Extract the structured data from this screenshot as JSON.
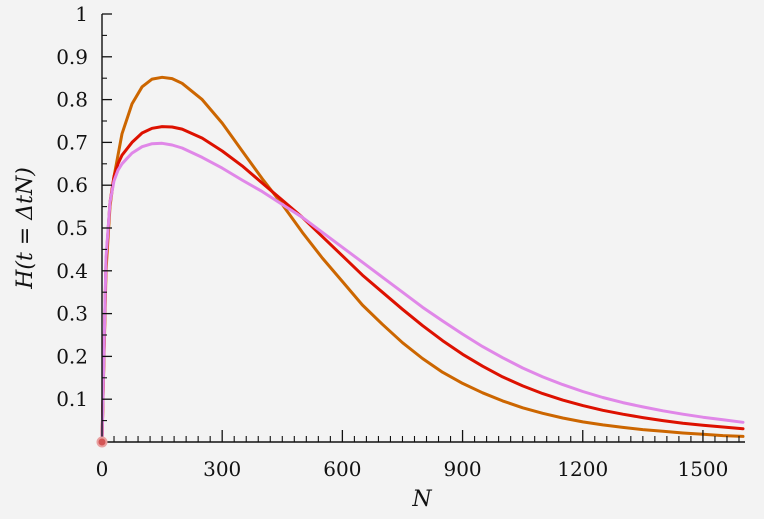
{
  "chart_data": {
    "type": "line",
    "title": "",
    "xlabel": "N",
    "ylabel": "H(t = ΔtN)",
    "xlim": [
      0,
      1600
    ],
    "ylim": [
      0,
      1
    ],
    "x_ticks": [
      "0",
      "300",
      "600",
      "900",
      "1200",
      "1500"
    ],
    "y_ticks": [
      "0.1",
      "0.2",
      "0.3",
      "0.4",
      "0.5",
      "0.6",
      "0.7",
      "0.8",
      "0.9",
      "1"
    ],
    "grid": false,
    "legend": "none",
    "series": [
      {
        "color": "#cc6600",
        "x": [
          0,
          10,
          20,
          30,
          40,
          50,
          75,
          100,
          125,
          150,
          175,
          200,
          250,
          300,
          350,
          400,
          450,
          500,
          550,
          600,
          650,
          700,
          750,
          800,
          850,
          900,
          950,
          1000,
          1050,
          1100,
          1150,
          1200,
          1250,
          1300,
          1350,
          1400,
          1450,
          1500,
          1550,
          1600
        ],
        "y": [
          0.0,
          0.4,
          0.55,
          0.62,
          0.67,
          0.72,
          0.79,
          0.83,
          0.848,
          0.852,
          0.849,
          0.838,
          0.8,
          0.745,
          0.68,
          0.615,
          0.555,
          0.49,
          0.43,
          0.375,
          0.32,
          0.275,
          0.232,
          0.195,
          0.163,
          0.137,
          0.115,
          0.096,
          0.08,
          0.067,
          0.056,
          0.047,
          0.04,
          0.034,
          0.029,
          0.025,
          0.021,
          0.018,
          0.015,
          0.013
        ]
      },
      {
        "color": "#dd1100",
        "x": [
          0,
          10,
          20,
          30,
          40,
          50,
          75,
          100,
          125,
          150,
          175,
          200,
          250,
          300,
          350,
          400,
          450,
          500,
          550,
          600,
          650,
          700,
          750,
          800,
          850,
          900,
          950,
          1000,
          1050,
          1100,
          1150,
          1200,
          1250,
          1300,
          1350,
          1400,
          1450,
          1500,
          1550,
          1600
        ],
        "y": [
          0.0,
          0.42,
          0.56,
          0.62,
          0.65,
          0.67,
          0.7,
          0.722,
          0.733,
          0.737,
          0.736,
          0.731,
          0.71,
          0.68,
          0.645,
          0.605,
          0.565,
          0.525,
          0.48,
          0.435,
          0.39,
          0.35,
          0.31,
          0.272,
          0.237,
          0.205,
          0.177,
          0.152,
          0.131,
          0.113,
          0.098,
          0.085,
          0.074,
          0.065,
          0.057,
          0.05,
          0.044,
          0.039,
          0.035,
          0.031
        ]
      },
      {
        "color": "#e087e8",
        "x": [
          0,
          10,
          20,
          30,
          40,
          50,
          75,
          100,
          125,
          150,
          175,
          200,
          250,
          300,
          350,
          400,
          450,
          500,
          550,
          600,
          650,
          700,
          750,
          800,
          850,
          900,
          950,
          1000,
          1050,
          1100,
          1150,
          1200,
          1250,
          1300,
          1350,
          1400,
          1450,
          1500,
          1550,
          1600
        ],
        "y": [
          0.0,
          0.43,
          0.56,
          0.61,
          0.635,
          0.65,
          0.675,
          0.69,
          0.697,
          0.698,
          0.694,
          0.687,
          0.665,
          0.64,
          0.612,
          0.585,
          0.555,
          0.525,
          0.49,
          0.455,
          0.42,
          0.385,
          0.35,
          0.315,
          0.283,
          0.252,
          0.223,
          0.197,
          0.173,
          0.152,
          0.134,
          0.118,
          0.104,
          0.092,
          0.082,
          0.073,
          0.065,
          0.058,
          0.052,
          0.046
        ]
      }
    ]
  }
}
